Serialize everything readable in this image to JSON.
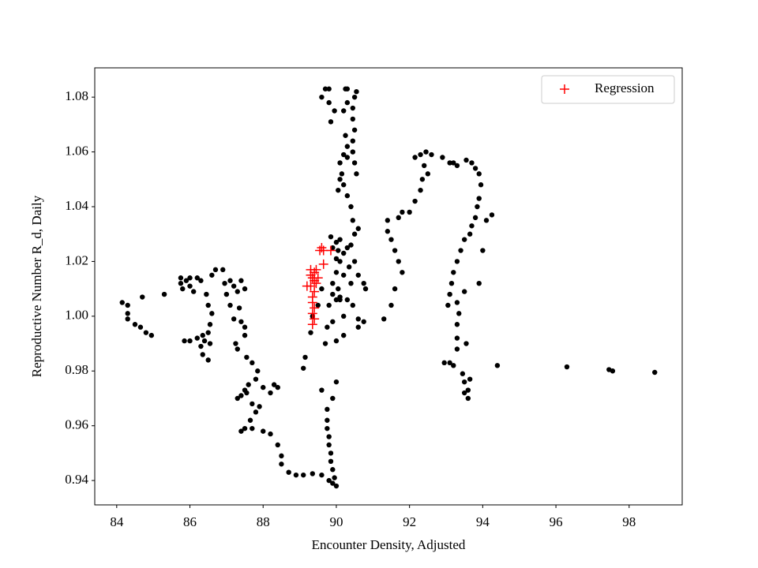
{
  "chart_data": {
    "type": "scatter",
    "xlabel": "Encounter Density, Adjusted",
    "ylabel": "Reproductive Number R_d, Daily",
    "xlim": [
      83.4,
      99.45
    ],
    "ylim": [
      0.9311,
      1.0907
    ],
    "xticks": [
      84,
      86,
      88,
      90,
      92,
      94,
      96,
      98
    ],
    "yticks": [
      0.94,
      0.96,
      0.98,
      {
        "value": 1.0,
        "label": "1.00"
      },
      1.02,
      1.04,
      1.06,
      1.08
    ],
    "legend": "upper right",
    "series": [
      {
        "color": "#000000",
        "marker": "o",
        "x": [
          84.15,
          84.3,
          84.3,
          84.3,
          84.5,
          84.65,
          84.8,
          84.95,
          84.7,
          85.3,
          85.75,
          85.75,
          85.8,
          86.0,
          86.0,
          86.1,
          85.9,
          86.2,
          86.3,
          86.45,
          86.5,
          86.6,
          86.55,
          86.5,
          86.4,
          86.2,
          86.0,
          85.85,
          86.3,
          86.35,
          86.5,
          86.35,
          86.55,
          86.6,
          86.7,
          86.9,
          86.95,
          87.1,
          87.2,
          87.0,
          87.3,
          87.4,
          87.5,
          87.1,
          87.2,
          87.35,
          87.4,
          87.5,
          87.5,
          87.25,
          87.3,
          87.55,
          87.7,
          87.85,
          87.8,
          87.6,
          87.5,
          87.4,
          87.3,
          87.55,
          87.7,
          87.8,
          87.65,
          87.5,
          87.4,
          87.7,
          88.0,
          88.2,
          88.4,
          88.5,
          88.5,
          88.7,
          88.9,
          89.1,
          89.35,
          89.6,
          89.8,
          90.0,
          89.9,
          89.95,
          89.9,
          89.85,
          89.85,
          89.8,
          89.8,
          89.75,
          89.75,
          89.75,
          89.9,
          90.0,
          89.6,
          88.3,
          88.4,
          88.2,
          88.0,
          87.9,
          89.1,
          89.15,
          89.3,
          89.35,
          89.5,
          89.7,
          89.75,
          89.9,
          89.8,
          89.9,
          90.0,
          90.1,
          90.3,
          90.45,
          90.6,
          90.75,
          90.6,
          90.2,
          90.0,
          89.6,
          89.9,
          90.0,
          90.1,
          90.2,
          90.3,
          90.5,
          90.6,
          90.75,
          90.8,
          90.4,
          90.35,
          90.2,
          90.1,
          89.85,
          90.0,
          90.05,
          90.4,
          90.5,
          90.6,
          90.45,
          90.4,
          90.3,
          90.2,
          90.1,
          90.05,
          90.15,
          90.3,
          90.55,
          90.5,
          90.45,
          90.45,
          90.5,
          90.45,
          90.45,
          90.5,
          90.55,
          90.3,
          90.25,
          90.3,
          90.2,
          90.25,
          90.3,
          90.2,
          90.1,
          89.85,
          89.95,
          89.8,
          89.6,
          89.7,
          89.8,
          89.9,
          90.0,
          90.05,
          90.2,
          90.1,
          91.3,
          91.5,
          91.6,
          91.8,
          91.7,
          91.6,
          91.5,
          91.4,
          91.4,
          91.7,
          91.8,
          92.0,
          92.15,
          92.3,
          92.35,
          92.5,
          92.4,
          92.15,
          92.3,
          92.45,
          92.6,
          92.9,
          93.1,
          93.3,
          93.2,
          93.55,
          93.7,
          93.8,
          93.9,
          93.95,
          93.9,
          93.85,
          93.8,
          93.7,
          93.65,
          93.5,
          93.4,
          93.3,
          93.2,
          93.15,
          93.1,
          93.05,
          93.3,
          93.35,
          93.3,
          93.3,
          93.3,
          93.1,
          92.95,
          93.2,
          93.45,
          93.5,
          93.5,
          93.6,
          93.65,
          93.6,
          93.55,
          93.5,
          93.9,
          94.0,
          94.1,
          94.25,
          94.4,
          96.3,
          97.45,
          97.55,
          98.7
        ],
        "values": [
          1.005,
          1.004,
          1.001,
          0.999,
          0.997,
          0.996,
          0.994,
          0.993,
          1.007,
          1.008,
          1.014,
          1.012,
          1.01,
          1.014,
          1.011,
          1.009,
          1.013,
          1.014,
          1.013,
          1.008,
          1.004,
          1.001,
          0.997,
          0.994,
          0.991,
          0.992,
          0.991,
          0.991,
          0.989,
          0.986,
          0.984,
          0.993,
          0.99,
          1.015,
          1.017,
          1.017,
          1.012,
          1.013,
          1.011,
          1.008,
          1.009,
          1.013,
          1.01,
          1.004,
          0.999,
          1.003,
          0.998,
          0.996,
          0.993,
          0.99,
          0.988,
          0.985,
          0.983,
          0.98,
          0.977,
          0.975,
          0.973,
          0.971,
          0.97,
          0.972,
          0.968,
          0.965,
          0.962,
          0.959,
          0.958,
          0.959,
          0.958,
          0.957,
          0.953,
          0.949,
          0.946,
          0.943,
          0.942,
          0.942,
          0.9425,
          0.942,
          0.94,
          0.938,
          0.939,
          0.941,
          0.944,
          0.947,
          0.95,
          0.953,
          0.956,
          0.959,
          0.962,
          0.966,
          0.97,
          0.976,
          0.973,
          0.975,
          0.974,
          0.972,
          0.974,
          0.967,
          0.981,
          0.985,
          0.994,
          1.0,
          1.004,
          0.99,
          0.996,
          0.998,
          1.004,
          1.008,
          1.006,
          1.006,
          1.006,
          1.004,
          0.999,
          0.998,
          0.996,
          0.993,
          0.991,
          1.01,
          1.012,
          1.016,
          1.02,
          1.023,
          1.025,
          1.02,
          1.015,
          1.012,
          1.01,
          1.012,
          1.018,
          1.015,
          1.028,
          1.029,
          1.027,
          1.024,
          1.026,
          1.03,
          1.032,
          1.035,
          1.04,
          1.044,
          1.048,
          1.05,
          1.046,
          1.052,
          1.058,
          1.052,
          1.056,
          1.06,
          1.064,
          1.068,
          1.072,
          1.076,
          1.08,
          1.082,
          1.083,
          1.083,
          1.078,
          1.075,
          1.066,
          1.062,
          1.059,
          1.056,
          1.071,
          1.075,
          1.078,
          1.08,
          1.083,
          1.083,
          1.025,
          1.021,
          1.01,
          1.0,
          1.007,
          0.999,
          1.004,
          1.01,
          1.016,
          1.02,
          1.024,
          1.028,
          1.031,
          1.035,
          1.036,
          1.038,
          1.038,
          1.042,
          1.046,
          1.05,
          1.052,
          1.055,
          1.058,
          1.059,
          1.06,
          1.059,
          1.058,
          1.056,
          1.055,
          1.056,
          1.057,
          1.056,
          1.054,
          1.052,
          1.048,
          1.043,
          1.04,
          1.036,
          1.033,
          1.03,
          1.028,
          1.024,
          1.02,
          1.016,
          1.012,
          1.008,
          1.004,
          1.005,
          1.001,
          0.997,
          0.992,
          0.988,
          0.983,
          0.983,
          0.982,
          0.979,
          0.976,
          0.972,
          0.97,
          0.977,
          0.973,
          0.99,
          1.009,
          1.012,
          1.024,
          1.035,
          1.037,
          0.982,
          0.9815,
          0.9805,
          0.98,
          0.9795
        ]
      },
      {
        "name": "Regression",
        "color": "#ff0000",
        "marker": "+",
        "x": [
          89.35,
          89.4,
          89.35,
          89.4,
          89.35,
          89.35,
          89.4,
          89.3,
          89.2,
          89.45,
          89.4,
          89.35,
          89.5,
          89.3,
          89.4,
          89.45,
          89.3,
          89.65,
          89.55,
          89.6,
          89.85,
          89.65
        ],
        "values": [
          0.997,
          0.999,
          1.001,
          1.003,
          1.005,
          1.007,
          1.009,
          1.011,
          1.011,
          1.012,
          1.013,
          1.014,
          1.014,
          1.015,
          1.016,
          1.017,
          1.017,
          1.019,
          1.024,
          1.025,
          1.024,
          1.024
        ]
      }
    ]
  }
}
